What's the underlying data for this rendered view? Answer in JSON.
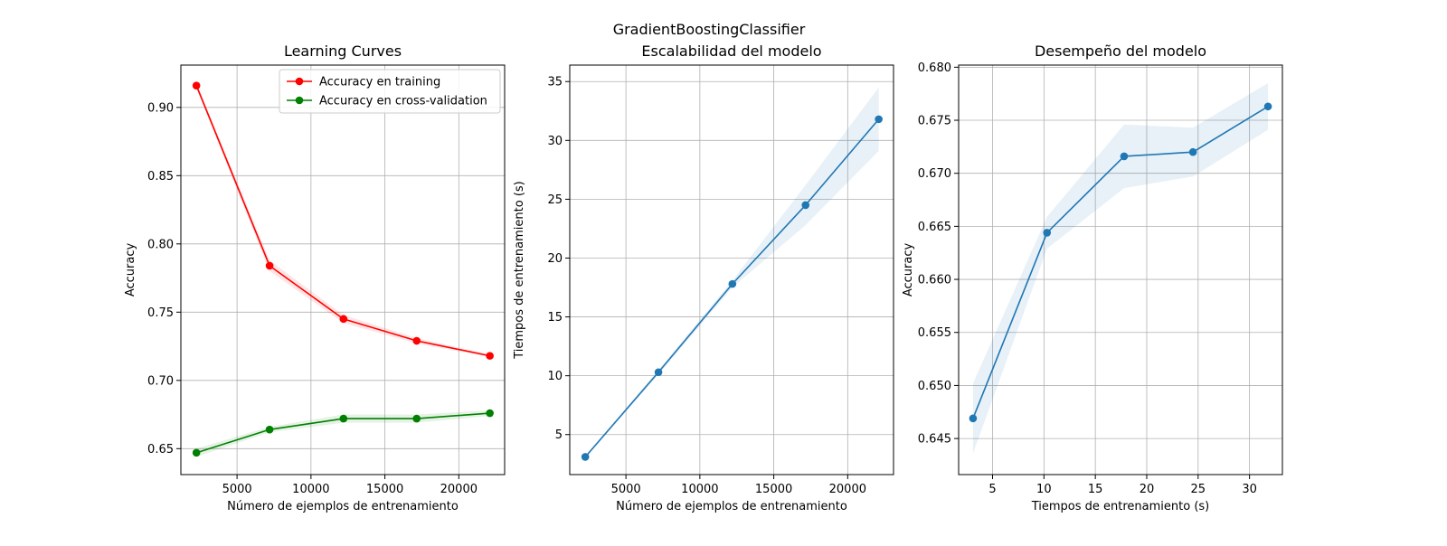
{
  "figure": {
    "suptitle": "GradientBoostingClassifier"
  },
  "chart_data": [
    {
      "type": "line",
      "title": "Learning Curves",
      "xlabel": "Número de ejemplos de entrenamiento",
      "ylabel": "Accuracy",
      "xlim": [
        1200,
        23100
      ],
      "ylim": [
        0.631,
        0.931
      ],
      "xticks": [
        5000,
        10000,
        15000,
        20000
      ],
      "yticks": [
        0.65,
        0.7,
        0.75,
        0.8,
        0.85,
        0.9
      ],
      "ytick_decimals": 2,
      "grid": true,
      "legend_position": "top-right",
      "x": [
        2250,
        7200,
        12200,
        17150,
        22100
      ],
      "series": [
        {
          "name": "Accuracy en training",
          "color": "#ff0000",
          "values": [
            0.916,
            0.784,
            0.745,
            0.729,
            0.718
          ],
          "band": [
            0.002,
            0.004,
            0.003,
            0.002,
            0.001
          ]
        },
        {
          "name": "Accuracy en cross-validation",
          "color": "#008000",
          "values": [
            0.647,
            0.664,
            0.672,
            0.672,
            0.676
          ],
          "band": [
            0.003,
            0.002,
            0.003,
            0.003,
            0.002
          ]
        }
      ]
    },
    {
      "type": "line",
      "title": "Escalabilidad del modelo",
      "xlabel": "Número de ejemplos de entrenamiento",
      "ylabel": "Tiempos de entrenamiento (s)",
      "xlim": [
        1200,
        23100
      ],
      "ylim": [
        1.6,
        36.4
      ],
      "xticks": [
        5000,
        10000,
        15000,
        20000
      ],
      "yticks": [
        5,
        10,
        15,
        20,
        25,
        30,
        35
      ],
      "ytick_decimals": 0,
      "grid": true,
      "x": [
        2250,
        7200,
        12200,
        17150,
        22100
      ],
      "series": [
        {
          "color": "#1f77b4",
          "values": [
            3.1,
            10.3,
            17.8,
            24.5,
            31.8
          ],
          "band": [
            0.1,
            0.2,
            0.3,
            1.7,
            2.7
          ]
        }
      ]
    },
    {
      "type": "line",
      "title": "Desempeño del modelo",
      "xlabel": "Tiempos de entrenamiento (s)",
      "ylabel": "Accuracy",
      "xlim": [
        1.7,
        33.2
      ],
      "ylim": [
        0.6416,
        0.6802
      ],
      "xticks": [
        5,
        10,
        15,
        20,
        25,
        30
      ],
      "yticks": [
        0.645,
        0.65,
        0.655,
        0.66,
        0.665,
        0.67,
        0.675,
        0.68
      ],
      "ytick_decimals": 3,
      "grid": true,
      "x": [
        3.1,
        10.3,
        17.8,
        24.5,
        31.8
      ],
      "series": [
        {
          "color": "#1f77b4",
          "values": [
            0.6469,
            0.6644,
            0.6716,
            0.672,
            0.6763
          ],
          "band": [
            0.0033,
            0.0015,
            0.003,
            0.0023,
            0.0022
          ]
        }
      ]
    }
  ]
}
